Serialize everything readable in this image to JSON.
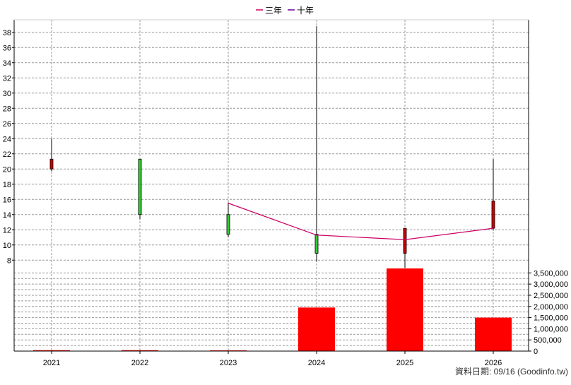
{
  "chart_data": {
    "type": "candlestick+bar",
    "legend": {
      "placement": "top-center",
      "items": [
        {
          "name": "三年",
          "color": "#cc0066"
        },
        {
          "name": "十年",
          "color": "#660099"
        }
      ]
    },
    "categories": [
      "2021",
      "2022",
      "2023",
      "2024",
      "2025",
      "2026"
    ],
    "price_axis": {
      "ylim": [
        7,
        39
      ],
      "ticks": [
        "8",
        "10",
        "12",
        "14",
        "16",
        "18",
        "20",
        "22",
        "24",
        "26",
        "28",
        "30",
        "32",
        "34",
        "36",
        "38"
      ],
      "grid": true
    },
    "volume_axis": {
      "ylim": [
        0,
        3700000
      ],
      "ticks": [
        "0",
        "500,000",
        "1,000,000",
        "1,500,000",
        "2,000,000",
        "2,500,000",
        "3,000,000",
        "3,500,000"
      ]
    },
    "candles": [
      {
        "year": "2021",
        "open": 20.0,
        "close": 21.3,
        "high": 24.0,
        "low": 19.7,
        "color": "#cc0000"
      },
      {
        "year": "2022",
        "open": 21.3,
        "close": 14.0,
        "high": 21.3,
        "low": 13.4,
        "color": "#33cc33"
      },
      {
        "year": "2023",
        "open": 14.0,
        "close": 11.4,
        "high": 15.6,
        "low": 11.0,
        "color": "#33cc33"
      },
      {
        "year": "2024",
        "open": 11.4,
        "close": 8.9,
        "high": 38.8,
        "low": 7.8,
        "color": "#33cc33"
      },
      {
        "year": "2025",
        "open": 8.9,
        "close": 12.2,
        "high": 12.2,
        "low": 7.0,
        "color": "#cc0000"
      },
      {
        "year": "2026",
        "open": 12.2,
        "close": 15.8,
        "high": 21.3,
        "low": 11.9,
        "color": "#cc0000"
      }
    ],
    "series": [
      {
        "name": "三年",
        "color": "#cc0066",
        "points": [
          {
            "x": "2023",
            "y": 15.5
          },
          {
            "x": "2024",
            "y": 11.3
          },
          {
            "x": "2025",
            "y": 10.7
          },
          {
            "x": "2026",
            "y": 12.2
          }
        ]
      }
    ],
    "volume": {
      "color": "#ff0000",
      "values": [
        40000,
        40000,
        10000,
        1950000,
        3700000,
        1500000
      ]
    }
  },
  "footer": {
    "text": "資料日期: 09/16  (Goodinfo.tw)"
  }
}
